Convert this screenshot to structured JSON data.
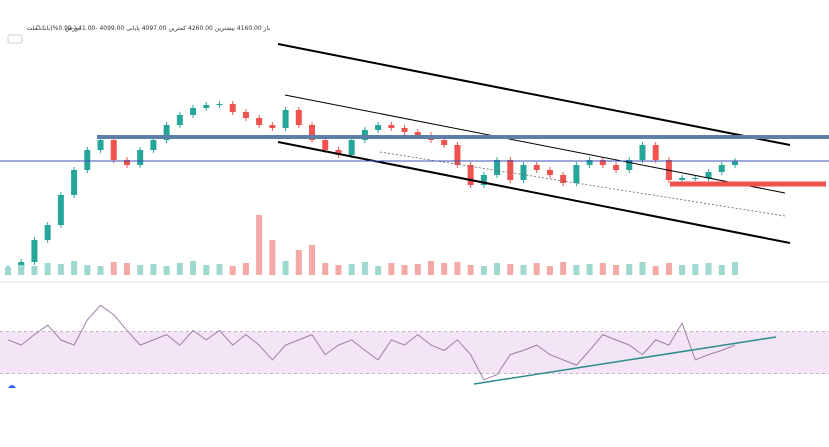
{
  "header": {
    "symbol": "بانک ملت",
    "interval": "D",
    "exchange": "بورس",
    "ohlc": "باز 4160.00 بیشترین 4260.00 کمترین 4097.00 پایانی 4099.00 -41.00 (-0.99%)"
  },
  "chart_data": [
    {
      "type": "candlestick",
      "up_color": "#26a69a",
      "down_color": "#ef5350",
      "ylim": [
        2910,
        5510
      ],
      "values": [
        3030,
        3090,
        3310,
        3460,
        3760,
        4010,
        4210,
        4310,
        4110,
        4060,
        4210,
        4310,
        4460,
        4560,
        4630,
        4660,
        4670,
        4590,
        4530,
        4460,
        4430,
        4610,
        4460,
        4310,
        4210,
        4160,
        4310,
        4410,
        4460,
        4430,
        4390,
        4360,
        4310,
        4260,
        4060,
        3860,
        3960,
        4110,
        3910,
        4060,
        4010,
        3960,
        3880,
        4060,
        4110,
        4060,
        4010,
        4110,
        4260,
        4110,
        3910,
        3930,
        3930,
        3990,
        4060,
        4099
      ]
    },
    {
      "type": "bar",
      "ylim": [
        0,
        200
      ],
      "values": [
        8,
        10,
        9,
        12,
        11,
        14,
        10,
        9,
        13,
        12,
        10,
        11,
        9,
        12,
        14,
        10,
        11,
        9,
        12,
        60,
        35,
        14,
        25,
        30,
        12,
        10,
        11,
        13,
        9,
        12,
        10,
        11,
        14,
        12,
        13,
        10,
        9,
        12,
        11,
        10,
        12,
        9,
        13,
        10,
        11,
        12,
        10,
        11,
        13,
        9,
        12,
        10,
        11,
        12,
        10,
        13
      ]
    },
    {
      "type": "line",
      "color": "#9c7fa6",
      "ylim": [
        20,
        100
      ],
      "bands": [
        30,
        70
      ],
      "band_color": "#f3e5f5",
      "values": [
        62,
        57,
        67,
        76,
        62,
        57,
        81,
        95,
        86,
        71,
        57,
        62,
        67,
        57,
        71,
        62,
        71,
        57,
        67,
        57,
        43,
        57,
        62,
        67,
        48,
        57,
        62,
        52,
        43,
        62,
        57,
        67,
        57,
        52,
        62,
        48,
        24,
        29,
        48,
        52,
        57,
        48,
        43,
        38,
        52,
        67,
        62,
        57,
        48,
        62,
        57,
        78,
        43,
        48,
        52,
        57
      ]
    }
  ]
}
